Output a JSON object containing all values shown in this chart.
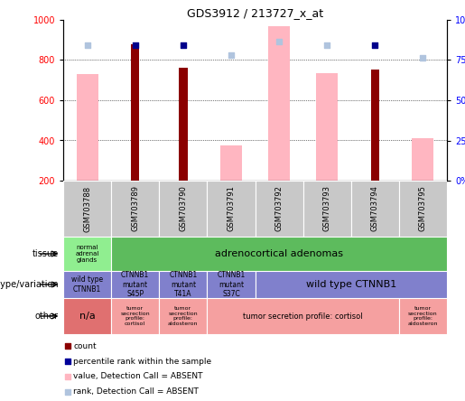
{
  "title": "GDS3912 / 213727_x_at",
  "samples": [
    "GSM703788",
    "GSM703789",
    "GSM703790",
    "GSM703791",
    "GSM703792",
    "GSM703793",
    "GSM703794",
    "GSM703795"
  ],
  "count_values": [
    0,
    880,
    760,
    0,
    0,
    0,
    755,
    0
  ],
  "value_absent": [
    730,
    0,
    0,
    375,
    970,
    735,
    0,
    410
  ],
  "percentile_absent": [
    84,
    84,
    84,
    78,
    86.5,
    84,
    84.5,
    76.5
  ],
  "has_count": [
    false,
    true,
    true,
    false,
    false,
    false,
    true,
    false
  ],
  "has_value_absent": [
    true,
    false,
    false,
    true,
    true,
    true,
    false,
    true
  ],
  "ylim_left": [
    200,
    1000
  ],
  "ylim_right": [
    0,
    100
  ],
  "yticks_left": [
    200,
    400,
    600,
    800,
    1000
  ],
  "yticks_right": [
    0,
    25,
    50,
    75,
    100
  ],
  "color_count": "#8B0000",
  "color_percentile": "#00008B",
  "color_value_absent": "#FFB6C1",
  "color_rank_absent": "#B0C4DE",
  "gray_bg": "#C8C8C8",
  "tissue_col0_text": "normal\nadrenal\nglands",
  "tissue_col0_color": "#90EE90",
  "tissue_col1_text": "adrenocortical adenomas",
  "tissue_col1_color": "#5DBB5D",
  "geno_color": "#8080CC",
  "geno_texts": [
    "wild type\nCTNNB1",
    "CTNNB1\nmutant\nS45P",
    "CTNNB1\nmutant\nT41A",
    "CTNNB1\nmutant\nS37C",
    "wild type CTNNB1"
  ],
  "other_col0_text": "n/a",
  "other_col0_color": "#E07070",
  "other_light_color": "#F5A0A0",
  "other_texts": [
    "tumor\nsecrection\nprofile:\ncortisol",
    "tumor\nsecrection\nprofile:\naldosteron",
    "tumor secretion profile: cortisol",
    "tumor\nsecrection\nprofile:\naldosteron"
  ],
  "row_labels": [
    "tissue",
    "genotype/variation",
    "other"
  ],
  "legend_items": [
    {
      "color": "#8B0000",
      "label": "count"
    },
    {
      "color": "#000099",
      "label": "percentile rank within the sample"
    },
    {
      "color": "#FFB6C1",
      "label": "value, Detection Call = ABSENT"
    },
    {
      "color": "#B0C4DE",
      "label": "rank, Detection Call = ABSENT"
    }
  ]
}
